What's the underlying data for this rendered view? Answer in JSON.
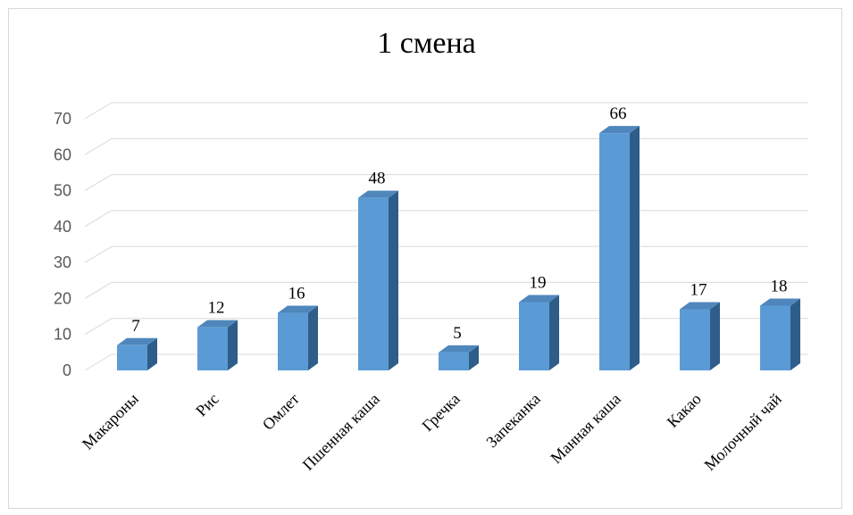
{
  "chart_data": {
    "type": "bar",
    "title": "1 смена",
    "categories": [
      "Макароны",
      "Рис",
      "Омлет",
      "Пшенная каша",
      "Гречка",
      "Запеканка",
      "Манная каша",
      "Какао",
      "Молочный чай"
    ],
    "values": [
      7,
      12,
      16,
      48,
      5,
      19,
      66,
      17,
      18
    ],
    "ylim": [
      0,
      70
    ],
    "yticks": [
      "0",
      "10",
      "20",
      "30",
      "40",
      "50",
      "60",
      "70"
    ],
    "style": "3d-column",
    "grid": true,
    "colors": {
      "bar_front": "#5b9bd5",
      "bar_side": "#2e5d8a",
      "bar_top": "#4f87bc",
      "grid": "#d9d9d9"
    }
  }
}
